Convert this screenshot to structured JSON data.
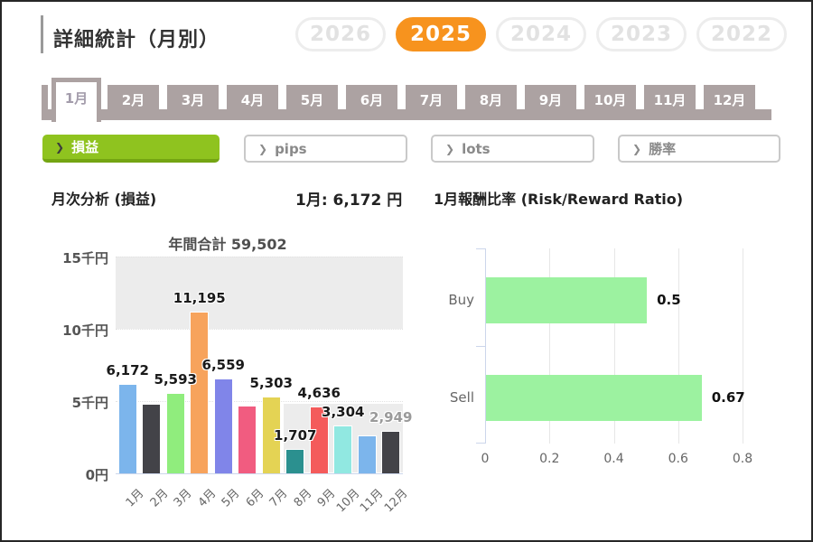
{
  "page": {
    "title": "詳細統計（月別）"
  },
  "years": {
    "options": [
      "2026",
      "2025",
      "2024",
      "2023",
      "2022"
    ],
    "selected": "2025",
    "accent_color": "#f7931e"
  },
  "months": {
    "labels": [
      "1月",
      "2月",
      "3月",
      "4月",
      "5月",
      "6月",
      "7月",
      "8月",
      "9月",
      "10月",
      "11月",
      "12月"
    ],
    "selected": "1月",
    "tab_color": "#aca2a2"
  },
  "filters": {
    "items": [
      {
        "label": "損益",
        "selected": true
      },
      {
        "label": "pips",
        "selected": false
      },
      {
        "label": "lots",
        "selected": false
      },
      {
        "label": "勝率",
        "selected": false
      }
    ],
    "selected_color": "#8fc31f"
  },
  "sections": {
    "left_heading": "月次分析 (損益)",
    "month_value": "1月: 6,172 円",
    "right_heading": "1月報酬比率 (Risk/Reward Ratio)"
  },
  "chart_data": [
    {
      "type": "bar",
      "title": "年間合計 59,502",
      "annual_total": 59502,
      "categories": [
        "1月",
        "2月",
        "3月",
        "4月",
        "5月",
        "6月",
        "7月",
        "8月",
        "9月",
        "10月",
        "11月",
        "12月"
      ],
      "values": [
        6172,
        4820,
        5593,
        11195,
        6559,
        4660,
        5303,
        1707,
        4636,
        3304,
        2604,
        2949
      ],
      "data_labels": [
        "6,172",
        null,
        "5,593",
        "11,195",
        "6,559",
        null,
        "5,303",
        "1,707",
        "4,636",
        "3,304",
        null,
        "2,949"
      ],
      "muted_labels": [
        "2,949"
      ],
      "colors": [
        "#7cb5ec",
        "#434348",
        "#90ed7d",
        "#f7a35c",
        "#8085e9",
        "#f15c80",
        "#e4d354",
        "#2b908f",
        "#f45b5b",
        "#91e8e1",
        "#7cb5ec",
        "#434348"
      ],
      "ylim": [
        0,
        15000
      ],
      "yticks": [
        {
          "label": "15千円",
          "value": 15000
        },
        {
          "label": "10千円",
          "value": 10000
        },
        {
          "label": "5千円",
          "value": 5000
        },
        {
          "label": "0円",
          "value": 0
        }
      ],
      "plot_bands": "gray band 10000-15000 full width; gray band 0-4800 right side",
      "grid": "dotted"
    },
    {
      "type": "bar-horizontal",
      "title": "1月報酬比率 (Risk/Reward Ratio)",
      "categories": [
        "Buy",
        "Sell"
      ],
      "values": [
        0.5,
        0.67
      ],
      "data_labels": [
        "0.5",
        "0.67"
      ],
      "bar_color": "#9cf2a0",
      "xlim": [
        0,
        0.9
      ],
      "xticks": [
        {
          "label": "0",
          "value": 0
        },
        {
          "label": "0.2",
          "value": 0.2
        },
        {
          "label": "0.4",
          "value": 0.4
        },
        {
          "label": "0.6",
          "value": 0.6
        },
        {
          "label": "0.8",
          "value": 0.8
        }
      ],
      "grid": "vertical"
    }
  ]
}
